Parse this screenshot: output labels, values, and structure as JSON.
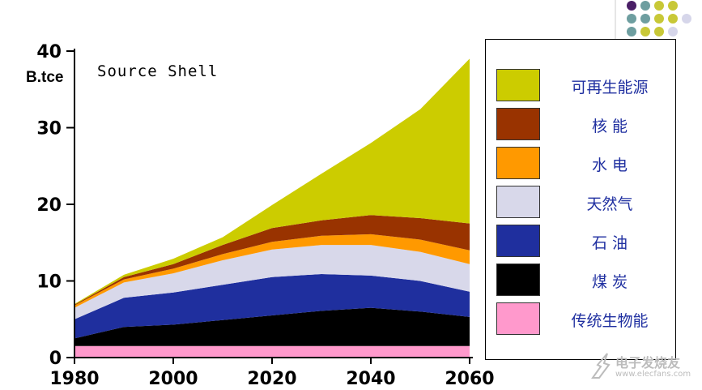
{
  "chart_data": {
    "type": "area",
    "stacked": true,
    "source_label": "Source Shell",
    "ylabel": "B.tce",
    "xlim": [
      1980,
      2060
    ],
    "ylim": [
      0,
      40
    ],
    "x_ticks": [
      1980,
      2000,
      2020,
      2040,
      2060
    ],
    "y_ticks": [
      0,
      10,
      20,
      30,
      40
    ],
    "x": [
      1980,
      1990,
      2000,
      2010,
      2020,
      2030,
      2040,
      2050,
      2060
    ],
    "series": [
      {
        "name": "传统生物能",
        "color": "#ff99cc",
        "values": [
          1.5,
          1.5,
          1.5,
          1.5,
          1.5,
          1.5,
          1.5,
          1.5,
          1.5
        ]
      },
      {
        "name": "煤 炭",
        "color": "#000000",
        "values": [
          1.0,
          2.5,
          2.8,
          3.4,
          4.0,
          4.6,
          5.0,
          4.5,
          3.8
        ]
      },
      {
        "name": "石 油",
        "color": "#1f2f9e",
        "values": [
          2.5,
          3.8,
          4.2,
          4.6,
          5.0,
          4.8,
          4.2,
          4.0,
          3.3
        ]
      },
      {
        "name": "天然气",
        "color": "#d8d8ea",
        "values": [
          1.5,
          2.0,
          2.5,
          3.2,
          3.6,
          3.8,
          4.0,
          3.8,
          3.6
        ]
      },
      {
        "name": "水 电",
        "color": "#ff9900",
        "values": [
          0.3,
          0.4,
          0.6,
          0.8,
          1.0,
          1.2,
          1.4,
          1.6,
          1.8
        ]
      },
      {
        "name": "核 能",
        "color": "#993300",
        "values": [
          0.1,
          0.3,
          0.6,
          1.2,
          1.8,
          2.0,
          2.5,
          2.8,
          3.5
        ]
      },
      {
        "name": "可再生能源",
        "color": "#cccc00",
        "values": [
          0.1,
          0.3,
          0.7,
          1.0,
          3.0,
          6.1,
          9.4,
          14.2,
          21.5
        ]
      }
    ],
    "legend_order": [
      "可再生能源",
      "核 能",
      "水 电",
      "天然气",
      "石 油",
      "煤 炭",
      "传统生物能"
    ]
  },
  "dots_colors": [
    "#4a1f66",
    "#6e9ea0",
    "#c8c837",
    "#d6d6ea"
  ],
  "watermark": {
    "cn": "电子发烧友",
    "url": "www.elecfans.com"
  }
}
